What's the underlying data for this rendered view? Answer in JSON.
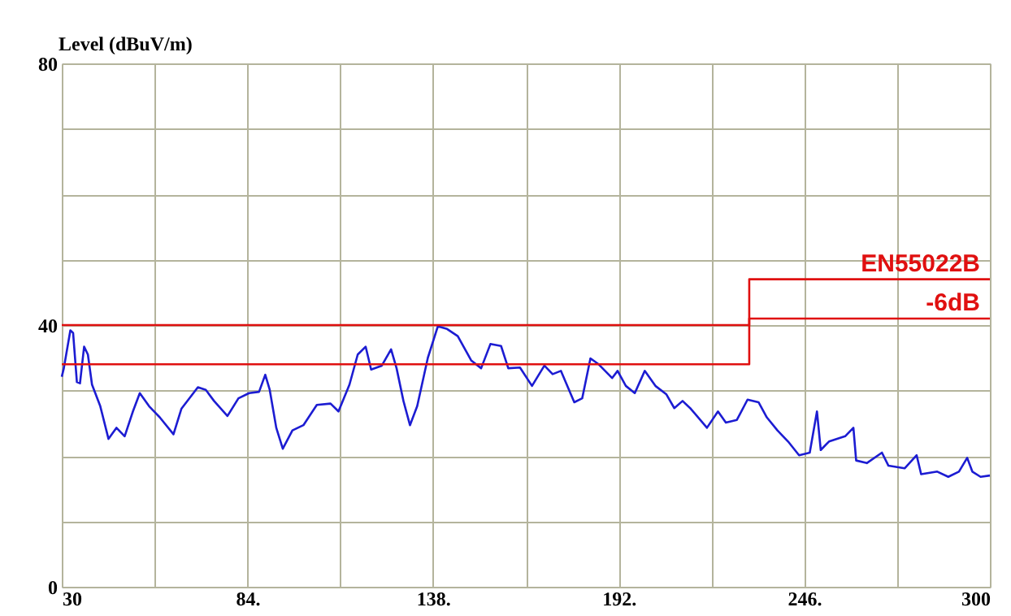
{
  "chart_data": {
    "type": "line",
    "ylabel": "Level (dBuV/m)",
    "xlim": [
      30,
      300
    ],
    "ylim": [
      0,
      80
    ],
    "xticks": [
      30,
      {
        "value": 57,
        "label": null
      },
      {
        "value": 84,
        "label": "84."
      },
      {
        "value": 111,
        "label": null
      },
      {
        "value": 138,
        "label": "138."
      },
      {
        "value": 165,
        "label": null
      },
      {
        "value": 192,
        "label": "192."
      },
      {
        "value": 219,
        "label": null
      },
      {
        "value": 246,
        "label": "246."
      },
      {
        "value": 273,
        "label": null
      },
      300
    ],
    "yticks": [
      0,
      {
        "value": 10,
        "label": null
      },
      {
        "value": 20,
        "label": null
      },
      {
        "value": 30,
        "label": null
      },
      40,
      {
        "value": 50,
        "label": null
      },
      {
        "value": 60,
        "label": null
      },
      {
        "value": 70,
        "label": null
      },
      80
    ],
    "grid": true,
    "marker": "none",
    "line_style": "solid",
    "series": [
      {
        "color": "#1c1cd2",
        "x": [
          30,
          30.6,
          32.5,
          33.3,
          34.4,
          35.3,
          36.5,
          37.6,
          38.8,
          41.2,
          43.6,
          45.9,
          48.3,
          50.7,
          52.7,
          55.4,
          58.5,
          62.5,
          64.8,
          69.6,
          71.9,
          74.3,
          78.2,
          81.4,
          84.5,
          87.4,
          89.2,
          90.5,
          92.4,
          94.3,
          97.1,
          100.3,
          104.2,
          108.2,
          110.5,
          113.7,
          116.1,
          118.4,
          120,
          123.1,
          125.8,
          127.4,
          129.4,
          131.3,
          133.4,
          136.5,
          139.4,
          142.1,
          145.2,
          149.1,
          152,
          154.7,
          157.8,
          159.9,
          163.3,
          166.8,
          170.4,
          172.8,
          175.2,
          179.1,
          181.4,
          183.8,
          186.2,
          190.1,
          191.7,
          194.1,
          196.7,
          199.6,
          202.7,
          205.9,
          208.2,
          210.6,
          213,
          217.7,
          220.9,
          223.2,
          226.4,
          229.5,
          232.7,
          235.1,
          238.2,
          241.3,
          244.5,
          247.6,
          249.7,
          250.8,
          253.2,
          257.9,
          260.3,
          261.1,
          264.2,
          268.6,
          270.5,
          275.2,
          278.7,
          280,
          284.7,
          287.9,
          291,
          293.4,
          294.9,
          297.3,
          300
        ],
        "values": [
          32.1,
          33.4,
          39.2,
          38.8,
          31.3,
          31.1,
          36.7,
          35.5,
          30.9,
          27.6,
          22.6,
          24.3,
          23,
          26.8,
          29.6,
          27.6,
          25.9,
          23.3,
          27.2,
          30.5,
          30.1,
          28.4,
          26.1,
          28.8,
          29.6,
          29.8,
          32.4,
          30.1,
          24.3,
          21.1,
          23.9,
          24.7,
          27.8,
          28,
          26.8,
          30.9,
          35.5,
          36.7,
          33.2,
          33.8,
          36.3,
          33.4,
          28.4,
          24.7,
          27.6,
          35,
          39.8,
          39.4,
          38.3,
          34.6,
          33.4,
          37.1,
          36.8,
          33.4,
          33.5,
          30.7,
          33.8,
          32.5,
          33,
          28.2,
          28.8,
          34.9,
          34,
          31.9,
          33,
          30.7,
          29.6,
          33,
          30.7,
          29.4,
          27.3,
          28.4,
          27.2,
          24.3,
          26.8,
          25.1,
          25.5,
          28.6,
          28.2,
          25.9,
          23.9,
          22.2,
          20.1,
          20.5,
          26.8,
          20.9,
          22.2,
          23,
          24.3,
          19.3,
          18.9,
          20.5,
          18.5,
          18.1,
          20.1,
          17.2,
          17.6,
          16.8,
          17.6,
          19.7,
          17.6,
          16.8,
          17
        ]
      },
      {
        "name": "EN55022B",
        "color": "#e01010",
        "x": [
          30,
          230,
          230,
          300
        ],
        "values": [
          40,
          40,
          47,
          47
        ]
      },
      {
        "name": "-6dB",
        "color": "#e01010",
        "x": [
          30,
          230,
          230,
          300
        ],
        "values": [
          34,
          34,
          41,
          41
        ]
      }
    ]
  }
}
